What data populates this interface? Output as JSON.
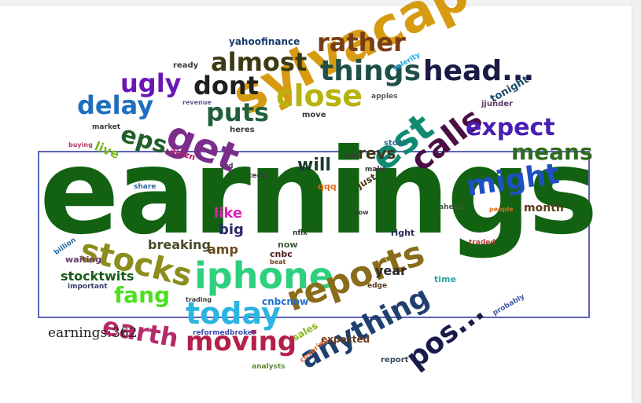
{
  "readout": "earnings:362",
  "words": [
    {
      "t": "earnings",
      "c": "#126212"
    },
    {
      "t": "sylvacap",
      "c": "#d79b12"
    },
    {
      "t": "iphone",
      "c": "#2ed07e"
    },
    {
      "t": "reports",
      "c": "#8a6d1b"
    },
    {
      "t": "stocks",
      "c": "#8d8d1c"
    },
    {
      "t": "get",
      "c": "#7b2d8b"
    },
    {
      "t": "est",
      "c": "#0f8b74"
    },
    {
      "t": "calls",
      "c": "#4b0f44"
    },
    {
      "t": "might",
      "c": "#1f4fc4"
    },
    {
      "t": "close",
      "c": "#b8b20f"
    },
    {
      "t": "things",
      "c": "#1f4f4a"
    },
    {
      "t": "head...",
      "c": "#1a1a44"
    },
    {
      "t": "almost",
      "c": "#3b3b12"
    },
    {
      "t": "rather",
      "c": "#7a3d13"
    },
    {
      "t": "dont",
      "c": "#1f1f1f"
    },
    {
      "t": "ugly",
      "c": "#6a16b5"
    },
    {
      "t": "delay",
      "c": "#1f6fbf"
    },
    {
      "t": "puts",
      "c": "#1f5f3a"
    },
    {
      "t": "expect",
      "c": "#4a1fb5"
    },
    {
      "t": "means",
      "c": "#2f6b1f"
    },
    {
      "t": "eps",
      "c": "#1f5f2a"
    },
    {
      "t": "today",
      "c": "#2cb5e0"
    },
    {
      "t": "moving",
      "c": "#b51f4a"
    },
    {
      "t": "anything",
      "c": "#1f3f6f"
    },
    {
      "t": "pos...",
      "c": "#1a1a4a"
    },
    {
      "t": "earth",
      "c": "#b52b6a"
    },
    {
      "t": "fang",
      "c": "#4be01f"
    },
    {
      "t": "stocktwits",
      "c": "#1a5a1a"
    },
    {
      "t": "will",
      "c": "#1a3a2a"
    },
    {
      "t": "revs",
      "c": "#3a3a1a"
    },
    {
      "t": "like",
      "c": "#e01fb5"
    },
    {
      "t": "big",
      "c": "#2a2a6a"
    },
    {
      "t": "breaking",
      "c": "#4a4a2a"
    },
    {
      "t": "amp",
      "c": "#6a4a1a"
    },
    {
      "t": "year",
      "c": "#2a2a2a"
    },
    {
      "t": "month",
      "c": "#5a3a1a"
    },
    {
      "t": "yahoofinance",
      "c": "#1a3a6a"
    },
    {
      "t": "live",
      "c": "#7ab51f"
    },
    {
      "t": "tonight",
      "c": "#1a4a6a"
    },
    {
      "t": "cnbcnow",
      "c": "#1f6fcf"
    },
    {
      "t": "expected",
      "c": "#6a3a1a"
    },
    {
      "t": "sales",
      "c": "#8ab51f"
    },
    {
      "t": "reformedbroker",
      "c": "#3a4ab5"
    },
    {
      "t": "analysts",
      "c": "#5a8a3a"
    },
    {
      "t": "covering",
      "c": "#e06a3a"
    },
    {
      "t": "report",
      "c": "#3a4a5a"
    },
    {
      "t": "probably",
      "c": "#3a5aa5"
    },
    {
      "t": "right",
      "c": "#2a2a5a"
    },
    {
      "t": "time",
      "c": "#2aa5a5"
    },
    {
      "t": "just",
      "c": "#4a3a1a"
    },
    {
      "t": "cnbc",
      "c": "#4a1a1a"
    },
    {
      "t": "now",
      "c": "#3a5a3a"
    },
    {
      "t": "nflx",
      "c": "#3a3a3a"
    },
    {
      "t": "qqq",
      "c": "#e06a1a"
    },
    {
      "t": "stock",
      "c": "#2a6a8a"
    },
    {
      "t": "call",
      "c": "#3a3a3a"
    },
    {
      "t": "make",
      "c": "#3a3a3a"
    },
    {
      "t": "amzn",
      "c": "#b51f6a"
    },
    {
      "t": "ytd",
      "c": "#5a3a6a"
    },
    {
      "t": "tech",
      "c": "#3a3a3a"
    },
    {
      "t": "heres",
      "c": "#3a3a3a"
    },
    {
      "t": "move",
      "c": "#3a3a3a"
    },
    {
      "t": "apples",
      "c": "#5a5a5a"
    },
    {
      "t": "jjunder",
      "c": "#5a3a6a"
    },
    {
      "t": "selerity",
      "c": "#2aa5e0"
    },
    {
      "t": "ready",
      "c": "#3a3a3a"
    },
    {
      "t": "revenue",
      "c": "#5a5a8a"
    },
    {
      "t": "market",
      "c": "#3a3a3a"
    },
    {
      "t": "buying",
      "c": "#b53a6a"
    },
    {
      "t": "share",
      "c": "#2a6aa5"
    },
    {
      "t": "billion",
      "c": "#2a6aa5"
    },
    {
      "t": "waiting",
      "c": "#6a3a6a"
    },
    {
      "t": "important",
      "c": "#3a3a6a"
    },
    {
      "t": "trading",
      "c": "#3a3a3a"
    },
    {
      "t": "edge",
      "c": "#5a3a1a"
    },
    {
      "t": "beat",
      "c": "#7a3a1a"
    },
    {
      "t": "ahead",
      "c": "#3a5a3a"
    },
    {
      "t": "traded",
      "c": "#b53a3a"
    },
    {
      "t": "dow",
      "c": "#3a3a3a"
    },
    {
      "t": "people",
      "c": "#e06a1a"
    }
  ]
}
